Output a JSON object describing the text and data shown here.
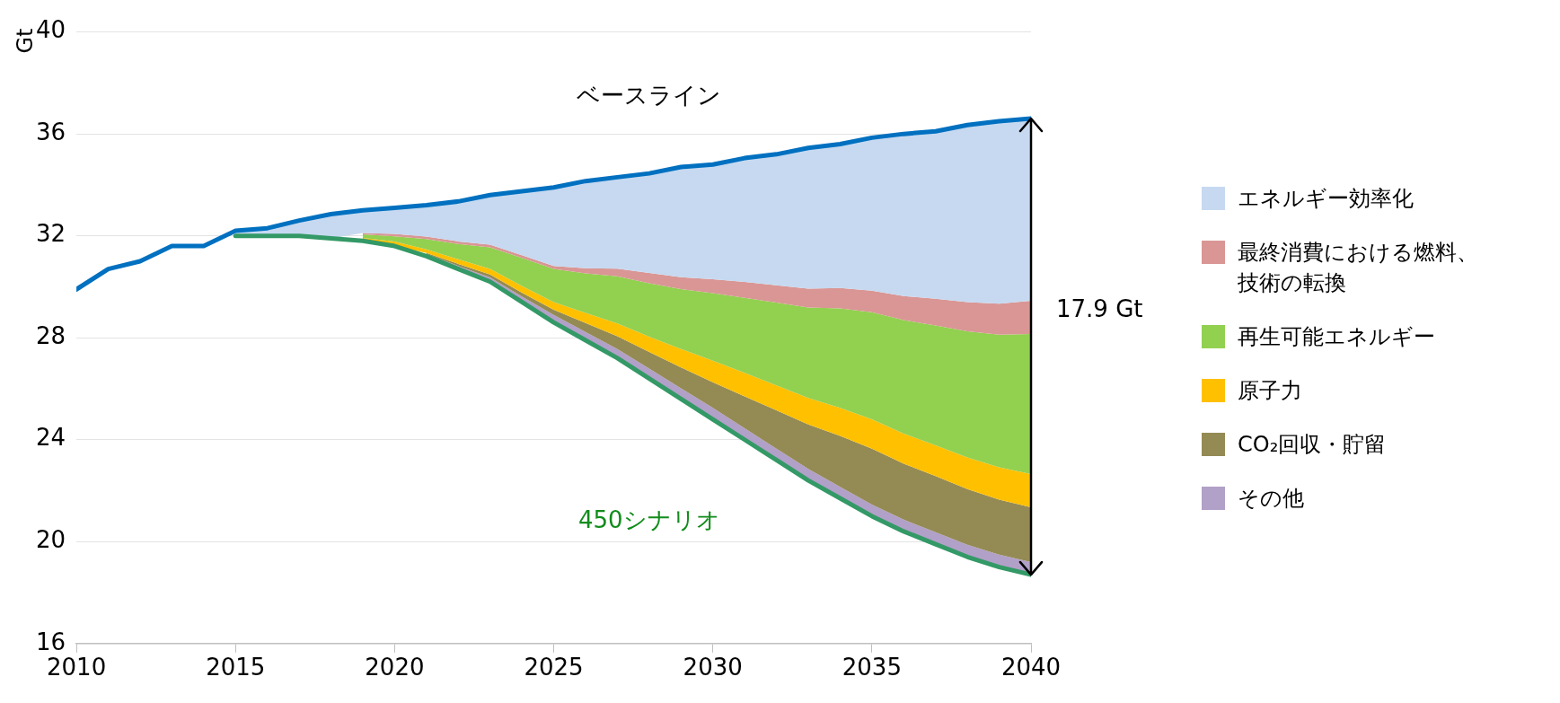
{
  "chart_data": {
    "type": "area",
    "ylabel": "Gt",
    "x": [
      2010,
      2011,
      2012,
      2013,
      2014,
      2015,
      2016,
      2017,
      2018,
      2019,
      2020,
      2021,
      2022,
      2023,
      2024,
      2025,
      2026,
      2027,
      2028,
      2029,
      2030,
      2031,
      2032,
      2033,
      2034,
      2035,
      2036,
      2037,
      2038,
      2039,
      2040
    ],
    "xlim": [
      2010,
      2040
    ],
    "xticks": [
      2010,
      2015,
      2020,
      2025,
      2030,
      2035,
      2040
    ],
    "ylim": [
      16,
      40
    ],
    "yticks": [
      16,
      20,
      24,
      28,
      32,
      36,
      40
    ],
    "grid": "y",
    "legend": "right",
    "marker": "none",
    "series": [
      {
        "name": "450シナリオ",
        "type": "line",
        "color": "#339966",
        "values": [
          null,
          null,
          null,
          null,
          null,
          32.0,
          32.0,
          32.0,
          31.9,
          31.8,
          31.6,
          31.2,
          30.7,
          30.2,
          29.4,
          28.6,
          27.9,
          27.2,
          26.4,
          25.6,
          24.8,
          24.0,
          23.2,
          22.4,
          21.7,
          21.0,
          20.4,
          19.9,
          19.4,
          19.0,
          18.7
        ]
      },
      {
        "name": "その他",
        "color": "#b1a0c7",
        "values": [
          null,
          null,
          null,
          null,
          null,
          null,
          null,
          null,
          null,
          null,
          null,
          31.28,
          30.82,
          30.37,
          29.62,
          28.9,
          28.23,
          27.56,
          26.79,
          26.02,
          25.25,
          24.45,
          23.65,
          22.85,
          22.15,
          21.45,
          20.86,
          20.37,
          19.88,
          19.49,
          19.2
        ]
      },
      {
        "name": "CO₂回収・貯留",
        "color": "#948a54",
        "values": [
          null,
          null,
          null,
          null,
          null,
          null,
          null,
          null,
          null,
          null,
          null,
          31.33,
          30.9,
          30.48,
          29.77,
          29.1,
          28.58,
          28.06,
          27.44,
          26.84,
          26.25,
          25.7,
          25.15,
          24.6,
          24.15,
          23.65,
          23.06,
          22.57,
          22.06,
          21.65,
          21.35
        ]
      },
      {
        "name": "原子力",
        "color": "#ffc000",
        "values": [
          null,
          null,
          null,
          null,
          null,
          null,
          null,
          null,
          null,
          31.92,
          31.78,
          31.47,
          31.08,
          30.7,
          30.03,
          29.4,
          28.98,
          28.56,
          28.04,
          27.56,
          27.1,
          26.62,
          26.13,
          25.64,
          25.25,
          24.8,
          24.24,
          23.78,
          23.3,
          22.92,
          22.65
        ]
      },
      {
        "name": "再生可能エネルギー",
        "color": "#92d050",
        "values": [
          null,
          null,
          null,
          null,
          null,
          null,
          null,
          null,
          null,
          32.06,
          31.98,
          31.87,
          31.68,
          31.55,
          31.13,
          30.7,
          30.53,
          30.41,
          30.14,
          29.91,
          29.75,
          29.57,
          29.38,
          29.19,
          29.15,
          29.0,
          28.69,
          28.48,
          28.25,
          28.12,
          28.15
        ]
      },
      {
        "name": "最終消費における燃料、技術の転換",
        "color": "#d99694",
        "values": [
          null,
          null,
          null,
          null,
          null,
          null,
          null,
          null,
          null,
          32.11,
          32.08,
          31.97,
          31.78,
          31.65,
          31.24,
          30.82,
          30.73,
          30.71,
          30.54,
          30.38,
          30.3,
          30.19,
          30.06,
          29.93,
          29.95,
          29.85,
          29.64,
          29.53,
          29.4,
          29.34,
          29.45
        ]
      },
      {
        "name": "エネルギー効率化",
        "color": "#c6d9f0",
        "values": [
          null,
          null,
          null,
          null,
          null,
          32.2,
          32.3,
          32.6,
          32.85,
          33.0,
          33.1,
          33.2,
          33.35,
          33.6,
          33.75,
          33.9,
          34.15,
          34.3,
          34.45,
          34.7,
          34.8,
          35.05,
          35.2,
          35.45,
          35.6,
          35.85,
          36.0,
          36.1,
          36.35,
          36.5,
          36.6
        ]
      },
      {
        "name": "ベースライン",
        "type": "line",
        "color": "#0070c0",
        "values": [
          29.9,
          30.7,
          31.0,
          31.6,
          31.6,
          32.2,
          32.3,
          32.6,
          32.85,
          33.0,
          33.1,
          33.2,
          33.35,
          33.6,
          33.75,
          33.9,
          34.15,
          34.3,
          34.45,
          34.7,
          34.8,
          35.05,
          35.2,
          35.45,
          35.6,
          35.85,
          36.0,
          36.1,
          36.35,
          36.5,
          36.6
        ]
      }
    ],
    "annotations": [
      "17.9 Gt"
    ]
  }
}
